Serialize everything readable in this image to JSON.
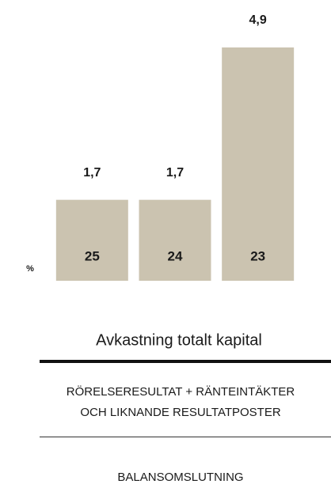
{
  "chart_data": {
    "type": "bar",
    "title": "Avkastning totalt kapital",
    "unit_label": "%",
    "categories": [
      "25",
      "24",
      "23"
    ],
    "values": [
      1.7,
      1.7,
      4.9
    ],
    "value_labels": [
      "1,7",
      "1,7",
      "4,9"
    ],
    "color": "#cbc3b0",
    "ylim": [
      0,
      5
    ],
    "numerator_lines": [
      "RÖRELSERESULTAT + RÄNTEINTÄKTER",
      "OCH LIKNANDE RESULTATPOSTER"
    ],
    "denominator": "BALANSOMSLUTNING"
  }
}
